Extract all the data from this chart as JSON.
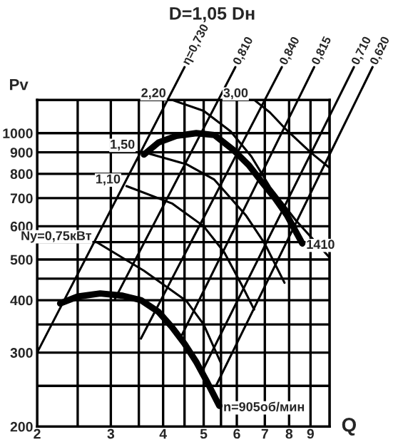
{
  "chart_data": {
    "type": "line",
    "title": "D=1,05 Dн",
    "xlabel": "Q",
    "ylabel": "Pv",
    "log": "xy",
    "grid": true,
    "legend": false,
    "marker": "none",
    "line_style": "solid",
    "xlim": [
      2,
      10
    ],
    "ylim": [
      200,
      1200
    ],
    "xticks": [
      2,
      {
        "value": 2.5,
        "label": null
      },
      3,
      {
        "value": 3.5,
        "label": null
      },
      4,
      {
        "value": 4.5,
        "label": null
      },
      5,
      {
        "value": 5.5,
        "label": null
      },
      6,
      7,
      8,
      9,
      {
        "value": 10,
        "label": null
      }
    ],
    "yticks": [
      200,
      {
        "value": 250,
        "label": null
      },
      300,
      {
        "value": 350,
        "label": null
      },
      400,
      {
        "value": 450,
        "label": null
      },
      500,
      {
        "value": 550,
        "label": null
      },
      600,
      700,
      800,
      900,
      1000,
      {
        "value": 1200,
        "label": null
      }
    ],
    "series": [
      {
        "name": "n=905об/мин",
        "color": "#000000",
        "x": [
          2.27,
          2.5,
          2.83,
          3.2,
          3.54,
          3.9,
          4.2,
          4.5,
          4.8,
          5.1,
          5.45
        ],
        "values": [
          393,
          408,
          415,
          410,
          400,
          375,
          345,
          315,
          285,
          255,
          224
        ]
      },
      {
        "name": "1410",
        "color": "#000000",
        "x": [
          3.6,
          3.9,
          4.3,
          4.8,
          5.3,
          5.9,
          6.4,
          6.9,
          7.4,
          7.9,
          8.6
        ],
        "values": [
          889,
          950,
          985,
          1000,
          990,
          910,
          840,
          763,
          700,
          638,
          546
        ]
      },
      {
        "name": "η=0,730",
        "color": "#000000",
        "x": [
          2,
          4.1
        ],
        "values": [
          300,
          1200
        ]
      },
      {
        "name": "0,810",
        "color": "#000000",
        "x": [
          3.07,
          5.42
        ],
        "values": [
          403,
          1200
        ]
      },
      {
        "name": "0,840",
        "color": "#000000",
        "x": [
          3.54,
          7.0
        ],
        "values": [
          324,
          1200
        ]
      },
      {
        "name": "0,815",
        "color": "#000000",
        "x": [
          4.4,
          8.4
        ],
        "values": [
          325,
          1200
        ]
      },
      {
        "name": "0,710",
        "color": "#000000",
        "x": [
          5.0,
          10
        ],
        "values": [
          275,
          1100
        ]
      },
      {
        "name": "0,620",
        "color": "#000000",
        "x": [
          5.35,
          10
        ],
        "values": [
          250,
          890
        ]
      },
      {
        "color": "#000000",
        "x": [
          2.79,
          3.6,
          4.55,
          5.0,
          5.5
        ],
        "values": [
          548,
          470,
          398,
          350,
          283
        ]
      },
      {
        "color": "#000000",
        "x": [
          3.27,
          4.2,
          5.0,
          5.6,
          6.2,
          6.6
        ],
        "values": [
          748,
          680,
          600,
          520,
          430,
          380
        ]
      },
      {
        "color": "#000000",
        "x": [
          3.54,
          4.55,
          5.3,
          6.3,
          7.0,
          7.8
        ],
        "values": [
          905,
          843,
          775,
          638,
          545,
          440
        ]
      },
      {
        "color": "#000000",
        "x": [
          4.2,
          5.0,
          5.8,
          6.5,
          7.2,
          8.3,
          10
        ],
        "values": [
          1200,
          1130,
          1010,
          880,
          744,
          620,
          505
        ]
      },
      {
        "color": "#000000",
        "x": [
          6.6,
          7.2,
          7.9,
          9,
          10
        ],
        "values": [
          1200,
          1120,
          1016,
          900,
          826
        ]
      }
    ],
    "annotations": [
      {
        "text": "Ny=0,75кВт",
        "x": 2.79,
        "y": 548
      },
      {
        "text": "1,10",
        "x": 3.27,
        "y": 748
      },
      {
        "text": "1,50",
        "x": 3.54,
        "y": 905
      },
      {
        "text": "2,20",
        "x": 4.2,
        "y": 1200
      },
      {
        "text": "3,00",
        "x": 6.6,
        "y": 1200
      }
    ]
  }
}
